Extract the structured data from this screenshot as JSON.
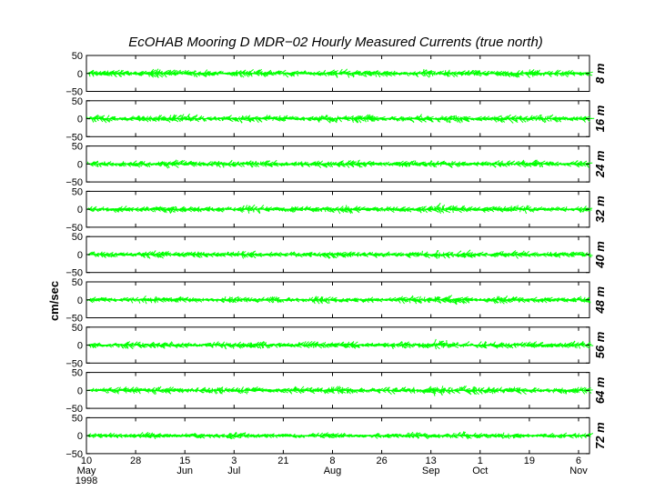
{
  "chart_data": {
    "type": "stick_plot",
    "title": "EcOHAB Mooring D   MDR−02   Hourly Measured Currents (true north)",
    "ylabel": "cm/sec",
    "ylim": [
      -50,
      50
    ],
    "yticks": [
      50,
      0,
      -50
    ],
    "ytick_labels": [
      "50",
      "0",
      "−50"
    ],
    "xrange_days_from_start": [
      0,
      184
    ],
    "xticks": [
      {
        "day": 0,
        "label": "10",
        "month": "May",
        "year": "1998"
      },
      {
        "day": 18,
        "label": "28",
        "month": ""
      },
      {
        "day": 36,
        "label": "15",
        "month": "Jun"
      },
      {
        "day": 54,
        "label": "3",
        "month": "Jul"
      },
      {
        "day": 72,
        "label": "21",
        "month": ""
      },
      {
        "day": 90,
        "label": "8",
        "month": "Aug"
      },
      {
        "day": 108,
        "label": "26",
        "month": ""
      },
      {
        "day": 126,
        "label": "13",
        "month": "Sep"
      },
      {
        "day": 144,
        "label": "1",
        "month": "Oct"
      },
      {
        "day": 162,
        "label": "19",
        "month": ""
      },
      {
        "day": 180,
        "label": "6",
        "month": "Nov"
      }
    ],
    "series_color": "#00ff00",
    "panels": [
      {
        "depth": "8 m",
        "typical_amplitude": 20
      },
      {
        "depth": "16 m",
        "typical_amplitude": 20
      },
      {
        "depth": "24 m",
        "typical_amplitude": 19
      },
      {
        "depth": "32 m",
        "typical_amplitude": 18
      },
      {
        "depth": "40 m",
        "typical_amplitude": 17
      },
      {
        "depth": "48 m",
        "typical_amplitude": 17
      },
      {
        "depth": "56 m",
        "typical_amplitude": 18
      },
      {
        "depth": "64 m",
        "typical_amplitude": 19
      },
      {
        "depth": "72 m",
        "typical_amplitude": 15
      }
    ]
  }
}
